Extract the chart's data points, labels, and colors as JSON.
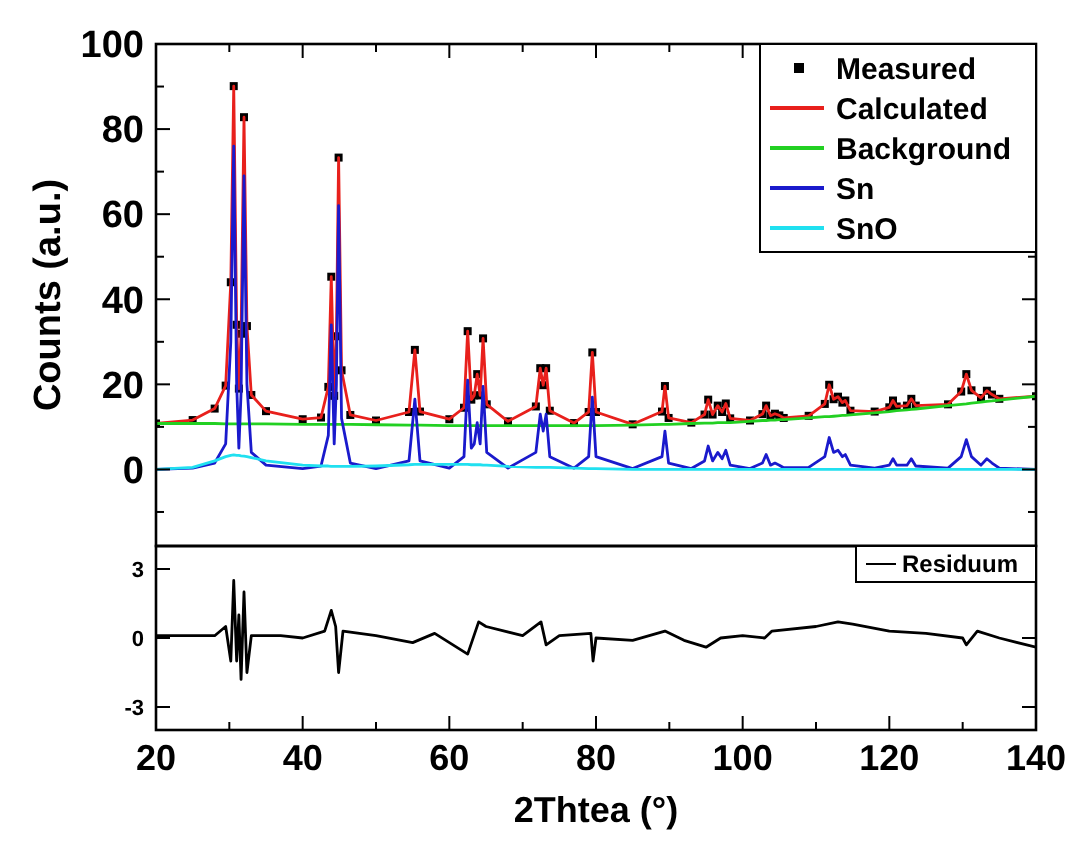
{
  "chart_data": [
    {
      "type": "line",
      "ylabel": "Counts (a.u.)",
      "xlim": [
        20,
        140
      ],
      "ylim": [
        -18,
        100
      ],
      "xticks": [
        20,
        {
          "value": 30,
          "label": null
        },
        40,
        {
          "value": 50,
          "label": null
        },
        60,
        {
          "value": 70,
          "label": null
        },
        80,
        {
          "value": 90,
          "label": null
        },
        100,
        {
          "value": 110,
          "label": null
        },
        120,
        {
          "value": 130,
          "label": null
        },
        140
      ],
      "yticks": [
        {
          "value": -10,
          "label": null
        },
        0,
        {
          "value": 10,
          "label": null
        },
        20,
        {
          "value": 30,
          "label": null
        },
        40,
        {
          "value": 50,
          "label": null
        },
        60,
        {
          "value": 70,
          "label": null
        },
        80,
        {
          "value": 90,
          "label": null
        },
        100
      ],
      "tick_labels": "y",
      "legend": "top right",
      "grid": false,
      "x": [
        20,
        25,
        28,
        29.5,
        30.2,
        30.6,
        31.0,
        31.3,
        31.6,
        32.0,
        32.4,
        33,
        35,
        40,
        42.5,
        43.5,
        43.9,
        44.3,
        44.6,
        44.9,
        45.3,
        46.5,
        50,
        54.5,
        55.3,
        56,
        60,
        62,
        62.5,
        63.0,
        63.4,
        63.8,
        64.2,
        64.6,
        65.1,
        68,
        71.8,
        72.4,
        72.8,
        73.2,
        73.7,
        77,
        79,
        79.5,
        80,
        85,
        89,
        89.4,
        89.9,
        93,
        94.8,
        95.3,
        95.9,
        96.6,
        97.2,
        97.7,
        98.3,
        101,
        102.7,
        103.2,
        103.8,
        104.4,
        105,
        105.6,
        109,
        111.2,
        111.8,
        112.4,
        113,
        113.6,
        114,
        114.7,
        118,
        120,
        120.5,
        121,
        122.4,
        123,
        123.6,
        128,
        129.8,
        130.5,
        131.2,
        132.5,
        133.3,
        134,
        135,
        140
      ],
      "series": [
        {
          "name": "Measured",
          "type": "scatter",
          "marker": "square",
          "color": "#000000",
          "values": [
            10.8,
            11.6,
            14.3,
            19.7,
            44,
            90.1,
            34,
            19,
            31.9,
            82.8,
            33.7,
            17.5,
            13.7,
            11.8,
            12.2,
            19.4,
            45.3,
            17.3,
            31.3,
            73.3,
            23.3,
            12.8,
            11.5,
            13.5,
            28.1,
            13.6,
            11.8,
            14.5,
            32.5,
            16.4,
            17.4,
            22.4,
            17.4,
            30.8,
            15.3,
            11.3,
            14.8,
            23.8,
            19.8,
            23.8,
            13.8,
            10.9,
            13.5,
            27.5,
            13.5,
            10.6,
            13.6,
            19.6,
            12.1,
            11,
            12.9,
            16.4,
            12.9,
            15,
            13.5,
            15.5,
            12,
            11.5,
            13,
            15,
            12.6,
            13.1,
            12.7,
            12.1,
            12.6,
            15.4,
            19.9,
            16.5,
            17.1,
            15.7,
            16.2,
            13.8,
            13.6,
            14.6,
            16.2,
            14.8,
            15,
            16.6,
            15,
            15.3,
            18.3,
            22.4,
            18.6,
            16.8,
            18.5,
            17.6,
            16.6,
            17.2
          ]
        },
        {
          "name": "Calculated",
          "color": "#e8201c",
          "values": [
            10.8,
            11.6,
            14.3,
            19.7,
            44,
            90.1,
            34,
            19,
            31.9,
            82.8,
            33.7,
            17.5,
            13.7,
            11.8,
            12.2,
            19.4,
            45.3,
            17.3,
            31.3,
            73.3,
            23.3,
            12.8,
            11.5,
            13.5,
            28.1,
            13.6,
            11.8,
            14.5,
            32.5,
            16.4,
            17.4,
            22.4,
            17.4,
            30.8,
            15.3,
            11.3,
            14.8,
            23.8,
            19.8,
            23.8,
            13.8,
            10.9,
            13.5,
            27.5,
            13.5,
            10.6,
            13.6,
            19.6,
            12.1,
            11,
            12.9,
            16.4,
            12.9,
            15,
            13.5,
            15.5,
            12,
            11.5,
            13,
            15,
            12.6,
            13.1,
            12.7,
            12.1,
            12.6,
            15.4,
            19.9,
            16.5,
            17.1,
            15.7,
            16.2,
            13.8,
            13.6,
            14.6,
            16.2,
            14.8,
            15,
            16.6,
            15,
            15.3,
            18.3,
            22.4,
            18.6,
            16.8,
            18.5,
            17.6,
            16.6,
            17.2
          ]
        },
        {
          "name": "Background",
          "color": "#22d022",
          "values": [
            10.8,
            10.8,
            10.8,
            10.7,
            10.7,
            10.7,
            10.7,
            10.7,
            10.7,
            10.7,
            10.7,
            10.7,
            10.7,
            10.6,
            10.6,
            10.6,
            10.6,
            10.6,
            10.6,
            10.6,
            10.6,
            10.6,
            10.5,
            10.4,
            10.4,
            10.4,
            10.3,
            10.3,
            10.3,
            10.3,
            10.3,
            10.3,
            10.3,
            10.3,
            10.3,
            10.3,
            10.3,
            10.3,
            10.3,
            10.3,
            10.3,
            10.3,
            10.3,
            10.3,
            10.3,
            10.4,
            10.6,
            10.6,
            10.6,
            10.8,
            10.9,
            10.9,
            10.9,
            11.0,
            11.0,
            11.0,
            11.0,
            11.3,
            11.5,
            11.5,
            11.6,
            11.6,
            11.7,
            11.7,
            12.1,
            12.4,
            12.4,
            12.5,
            12.6,
            12.7,
            12.7,
            12.8,
            13.3,
            13.6,
            13.7,
            13.8,
            14.0,
            14.1,
            14.2,
            15.0,
            15.3,
            15.4,
            15.6,
            15.8,
            16.0,
            16.1,
            16.3,
            17.2
          ]
        },
        {
          "name": "Sn",
          "color": "#1a1acc",
          "values": [
            0,
            0.3,
            1.5,
            6,
            30,
            76,
            20,
            5,
            18,
            69,
            20,
            4,
            1,
            0.2,
            0.8,
            8,
            34,
            6,
            20,
            62,
            12,
            1.5,
            0.2,
            2,
            16.5,
            2,
            0.3,
            3,
            21,
            5,
            6,
            11,
            6,
            19.5,
            4,
            0.3,
            4,
            13,
            9,
            13,
            3,
            0.3,
            3,
            17,
            3,
            0.2,
            3,
            9,
            1.5,
            0.2,
            2,
            5.5,
            2,
            4,
            2.5,
            4.5,
            1,
            0.2,
            1.5,
            3.5,
            1,
            1.5,
            1,
            0.4,
            0.5,
            3,
            7.5,
            4,
            4.5,
            3,
            3.5,
            1,
            0.3,
            1,
            2.5,
            1,
            1,
            2.5,
            0.8,
            0.3,
            3,
            7,
            3,
            1,
            2.5,
            1.5,
            0.3,
            0
          ]
        },
        {
          "name": "SnO",
          "color": "#20e0f0",
          "values": [
            0,
            0.5,
            2,
            3,
            3.3,
            3.4,
            3.3,
            3.3,
            3.2,
            3.1,
            3.0,
            2.8,
            2,
            1,
            0.8,
            0.8,
            0.7,
            0.7,
            0.7,
            0.7,
            0.7,
            0.7,
            0.8,
            1.1,
            1.2,
            1.2,
            1.2,
            1.2,
            1.2,
            1.1,
            1.1,
            1.1,
            1.1,
            1.0,
            1.0,
            0.7,
            0.5,
            0.5,
            0.5,
            0.5,
            0.5,
            0.3,
            0.2,
            0.2,
            0.2,
            0,
            0,
            0,
            0,
            0,
            0,
            0,
            0,
            0,
            0,
            0,
            0,
            0,
            0,
            0,
            0,
            0,
            0,
            0,
            0,
            0,
            0,
            0,
            0,
            0,
            0,
            0,
            0,
            0,
            0,
            0,
            0,
            0,
            0,
            0,
            0,
            0,
            0,
            0,
            0,
            0,
            0,
            0
          ]
        }
      ]
    },
    {
      "type": "line",
      "xlabel": "2Thtea (°)",
      "xlim": [
        20,
        140
      ],
      "ylim": [
        -4,
        4
      ],
      "xticks": [
        20,
        {
          "value": 30,
          "label": null
        },
        40,
        {
          "value": 50,
          "label": null
        },
        60,
        {
          "value": 70,
          "label": null
        },
        80,
        {
          "value": 90,
          "label": null
        },
        100,
        {
          "value": 110,
          "label": null
        },
        120,
        {
          "value": 130,
          "label": null
        },
        140
      ],
      "yticks": [
        -3,
        0,
        3
      ],
      "legend": "top right",
      "grid": false,
      "series": [
        {
          "name": "Residuum",
          "color": "#000000",
          "x": [
            20,
            25,
            28,
            29.5,
            30.2,
            30.6,
            31,
            31.3,
            31.6,
            32,
            32.4,
            33,
            37,
            40,
            43,
            43.9,
            44.5,
            44.9,
            45.5,
            50,
            55,
            58,
            62.5,
            64,
            65,
            70,
            72.5,
            73.2,
            75,
            79.3,
            79.6,
            80,
            85,
            89.4,
            92,
            95,
            97,
            100,
            103,
            104,
            110,
            113,
            115,
            120,
            125,
            130,
            130.5,
            132,
            135,
            140
          ],
          "values": [
            0.1,
            0.1,
            0.1,
            0.5,
            -1,
            2.5,
            -1,
            1,
            -1.8,
            2,
            -1.5,
            0.1,
            0.1,
            0,
            0.3,
            1.2,
            0.5,
            -1.5,
            0.3,
            0.1,
            -0.2,
            0.2,
            -0.7,
            0.7,
            0.5,
            0.1,
            0.7,
            -0.3,
            0.1,
            0.2,
            -1,
            0,
            -0.1,
            0.3,
            -0.1,
            -0.4,
            0,
            0.1,
            0,
            0.3,
            0.5,
            0.7,
            0.6,
            0.3,
            0.2,
            0,
            -0.3,
            0.3,
            0,
            -0.4
          ]
        }
      ]
    }
  ]
}
